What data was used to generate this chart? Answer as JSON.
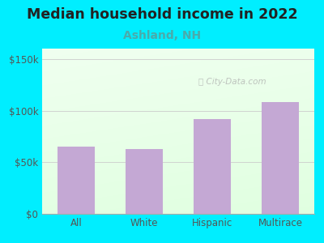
{
  "title": "Median household income in 2022",
  "subtitle": "Ashland, NH",
  "categories": [
    "All",
    "White",
    "Hispanic",
    "Multirace"
  ],
  "values": [
    65000,
    63000,
    92000,
    108000
  ],
  "bar_color": "#c4a8d4",
  "title_fontsize": 12.5,
  "subtitle_fontsize": 10,
  "subtitle_color": "#4aabab",
  "yticks": [
    0,
    50000,
    100000,
    150000
  ],
  "ytick_labels": [
    "$0",
    "$50k",
    "$100k",
    "$150k"
  ],
  "ylim": [
    0,
    160000
  ],
  "bg_outer": "#00eeff",
  "watermark": "City-Data.com",
  "tick_color": "#555555"
}
